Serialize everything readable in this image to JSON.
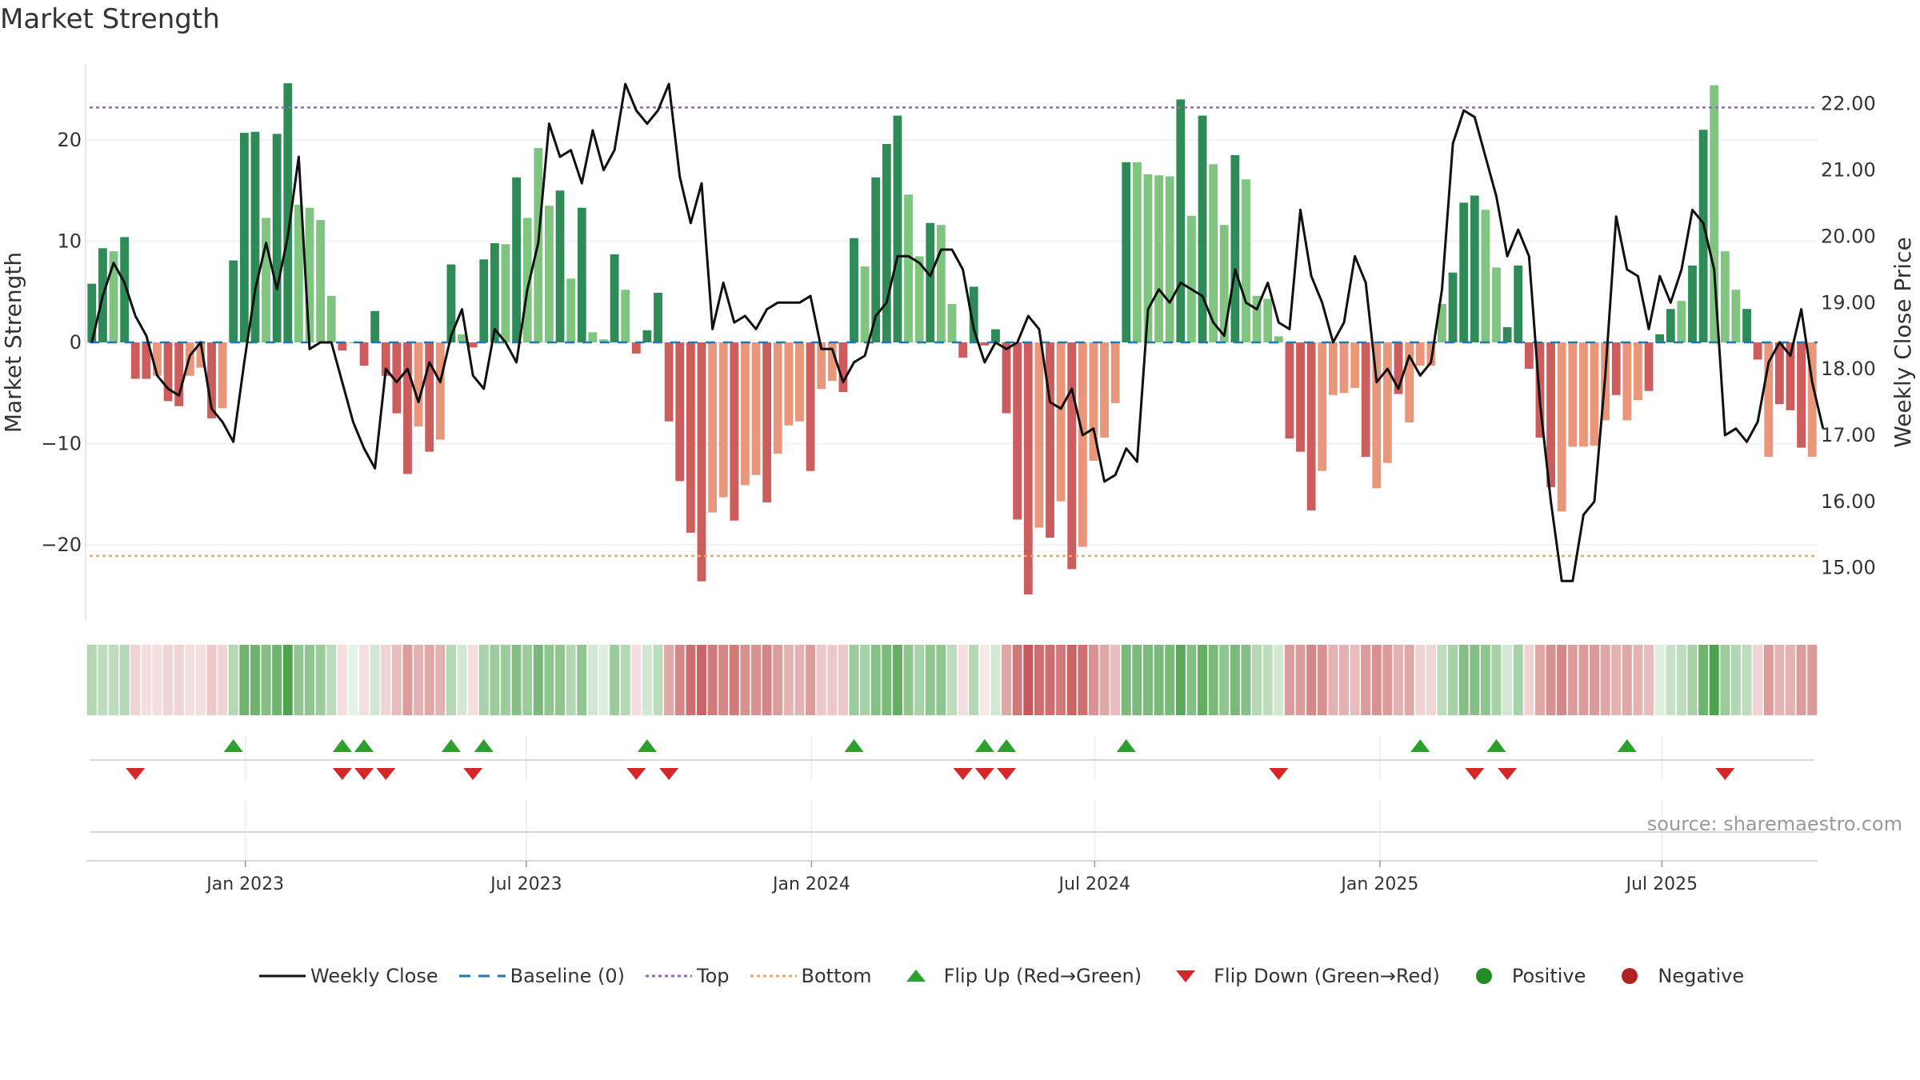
{
  "title": "Market Strength",
  "source": "source: sharemaestro.com",
  "colors": {
    "strong_green": "#2e8b57",
    "light_green": "#7fc47f",
    "strong_red": "#cd5c5c",
    "light_red": "#e9967a",
    "close_line": "#111111",
    "baseline": "#1f77b4",
    "top_line": "#9467bd",
    "bottom_line": "#f4a460",
    "flip_up": "#2ca02c",
    "flip_down": "#d62728",
    "positive": "#228b22",
    "negative": "#b22222"
  },
  "legend": [
    {
      "label": "Weekly Close",
      "icon": "solid-line-icon"
    },
    {
      "label": "Baseline (0)",
      "icon": "dashed-line-icon"
    },
    {
      "label": "Top",
      "icon": "dotted-line-icon"
    },
    {
      "label": "Bottom",
      "icon": "dotted-line-icon"
    },
    {
      "label": "Flip Up (Red→Green)",
      "icon": "triangle-up-icon"
    },
    {
      "label": "Flip Down (Green→Red)",
      "icon": "triangle-down-icon"
    },
    {
      "label": "Positive",
      "icon": "circle-icon"
    },
    {
      "label": "Negative",
      "icon": "circle-icon"
    }
  ],
  "chart_data": {
    "type": "bar",
    "title": "Market Strength",
    "ylabel": "Market Strength",
    "y2label": "Weekly Close Price",
    "ylim": [
      -27.5,
      27.5
    ],
    "y2lim": [
      14.2,
      22.6
    ],
    "yticks": [
      -20,
      -10,
      0,
      10,
      20
    ],
    "ytick_labels": [
      "−20",
      "−10",
      "0",
      "10",
      "20"
    ],
    "y2ticks": [
      15,
      16,
      17,
      18,
      19,
      20,
      21,
      22
    ],
    "y2tick_labels": [
      "15.00",
      "16.00",
      "17.00",
      "18.00",
      "19.00",
      "20.00",
      "21.00",
      "22.00"
    ],
    "xticks": [
      {
        "label": "Jan 2023",
        "week": 14.6
      },
      {
        "label": "Jul 2023",
        "week": 40.4
      },
      {
        "label": "Jan 2024",
        "week": 66.6
      },
      {
        "label": "Jul 2024",
        "week": 92.6
      },
      {
        "label": "Jan 2025",
        "week": 118.8
      },
      {
        "label": "Jul 2025",
        "week": 144.7
      }
    ],
    "top_level": 23.2,
    "bottom_level": -21.1,
    "baseline": 0,
    "series": [
      {
        "name": "Market Strength",
        "values": [
          5.8,
          9.3,
          9.0,
          10.4,
          -3.6,
          -3.6,
          -3.3,
          -5.8,
          -6.3,
          -3.3,
          -2.5,
          -7.5,
          -6.5,
          8.1,
          20.7,
          20.8,
          12.3,
          20.6,
          25.6,
          13.6,
          13.3,
          12.1,
          4.6,
          -0.8,
          0,
          -2.3,
          3.1,
          -3.3,
          -7.0,
          -13.0,
          -8.3,
          -10.8,
          -9.6,
          7.7,
          0.8,
          -0.5,
          8.2,
          9.8,
          9.7,
          16.3,
          12.3,
          19.2,
          13.5,
          15.0,
          6.3,
          13.3,
          1.0,
          0.3,
          8.7,
          5.2,
          -1.1,
          1.2,
          4.9,
          -7.8,
          -13.7,
          -18.8,
          -23.6,
          -16.8,
          -15.3,
          -17.6,
          -14.1,
          -13.1,
          -15.8,
          -11.0,
          -8.2,
          -7.8,
          -12.7,
          -4.6,
          -3.8,
          -4.9,
          10.3,
          7.5,
          16.3,
          19.6,
          22.4,
          14.6,
          8.5,
          11.8,
          11.6,
          3.8,
          -1.5,
          5.5,
          -0.3,
          1.3,
          -7.0,
          -17.5,
          -24.9,
          -18.3,
          -19.3,
          -15.7,
          -22.4,
          -20.2,
          -11.7,
          -9.4,
          -6.0,
          17.8,
          17.8,
          16.6,
          16.5,
          16.4,
          24.0,
          12.5,
          22.4,
          17.6,
          11.6,
          18.5,
          16.1,
          4.6,
          4.3,
          0.6,
          -9.5,
          -10.8,
          -16.6,
          -12.7,
          -5.2,
          -5.0,
          -4.5,
          -11.3,
          -14.4,
          -11.9,
          -5.1,
          -7.9,
          -2.3,
          -2.3,
          3.8,
          6.9,
          13.8,
          14.5,
          13.1,
          7.4,
          1.5,
          7.6,
          -2.6,
          -9.4,
          -14.3,
          -16.7,
          -10.3,
          -10.3,
          -10.2,
          -7.7,
          -5.2,
          -7.7,
          -5.7,
          -4.8,
          0.8,
          3.3,
          4.1,
          7.6,
          21.0,
          25.4,
          9.0,
          5.2,
          3.3,
          -1.7,
          -11.3,
          -6.1,
          -6.7,
          -10.4,
          -11.3
        ],
        "intensity": [
          "strong",
          "strong",
          "light",
          "strong",
          "strong",
          "strong",
          "light",
          "strong",
          "strong",
          "light",
          "light",
          "strong",
          "light",
          "strong",
          "strong",
          "strong",
          "light",
          "strong",
          "strong",
          "light",
          "light",
          "light",
          "light",
          "strong",
          "strong",
          "strong",
          "strong",
          "strong",
          "strong",
          "strong",
          "light",
          "strong",
          "light",
          "strong",
          "light",
          "strong",
          "strong",
          "strong",
          "light",
          "strong",
          "light",
          "light",
          "light",
          "strong",
          "light",
          "strong",
          "light",
          "light",
          "strong",
          "light",
          "strong",
          "strong",
          "strong",
          "strong",
          "strong",
          "strong",
          "strong",
          "light",
          "light",
          "strong",
          "light",
          "light",
          "strong",
          "light",
          "light",
          "light",
          "strong",
          "light",
          "light",
          "strong",
          "strong",
          "light",
          "strong",
          "strong",
          "strong",
          "light",
          "light",
          "strong",
          "light",
          "light",
          "strong",
          "strong",
          "strong",
          "strong",
          "strong",
          "strong",
          "strong",
          "light",
          "strong",
          "light",
          "strong",
          "light",
          "light",
          "light",
          "light",
          "strong",
          "light",
          "light",
          "light",
          "light",
          "strong",
          "light",
          "strong",
          "light",
          "light",
          "strong",
          "light",
          "light",
          "light",
          "light",
          "strong",
          "strong",
          "strong",
          "light",
          "light",
          "light",
          "light",
          "strong",
          "light",
          "light",
          "strong",
          "light",
          "light",
          "light",
          "light",
          "strong",
          "strong",
          "strong",
          "light",
          "light",
          "strong",
          "strong",
          "strong",
          "strong",
          "strong",
          "light",
          "light",
          "light",
          "light",
          "light",
          "strong",
          "light",
          "light",
          "strong",
          "strong",
          "strong",
          "light",
          "strong",
          "strong",
          "light",
          "light",
          "light",
          "strong",
          "strong",
          "light",
          "strong",
          "strong",
          "strong"
        ]
      },
      {
        "name": "Weekly Close",
        "values": [
          18.4,
          19.1,
          19.6,
          19.3,
          18.8,
          18.5,
          17.9,
          17.7,
          17.6,
          18.2,
          18.4,
          17.4,
          17.2,
          16.9,
          18.1,
          19.2,
          19.9,
          19.2,
          20.0,
          21.2,
          18.3,
          18.4,
          18.4,
          17.8,
          17.2,
          16.8,
          16.5,
          18.0,
          17.8,
          18.0,
          17.5,
          18.1,
          17.8,
          18.5,
          18.9,
          17.9,
          17.7,
          18.6,
          18.4,
          18.1,
          19.2,
          19.9,
          21.7,
          21.2,
          21.3,
          20.8,
          21.6,
          21.0,
          21.3,
          22.3,
          21.9,
          21.7,
          21.9,
          22.3,
          20.9,
          20.2,
          20.8,
          18.6,
          19.3,
          18.7,
          18.8,
          18.6,
          18.9,
          19.0,
          19.0,
          19.0,
          19.1,
          18.3,
          18.3,
          17.8,
          18.1,
          18.2,
          18.8,
          19.0,
          19.7,
          19.7,
          19.6,
          19.4,
          19.8,
          19.8,
          19.5,
          18.6,
          18.1,
          18.4,
          18.3,
          18.4,
          18.8,
          18.6,
          17.5,
          17.4,
          17.7,
          17.0,
          17.1,
          16.3,
          16.4,
          16.8,
          16.6,
          18.9,
          19.2,
          19.0,
          19.3,
          19.2,
          19.1,
          18.7,
          18.5,
          19.5,
          19.0,
          18.9,
          19.3,
          18.7,
          18.6,
          20.4,
          19.4,
          19.0,
          18.4,
          18.7,
          19.7,
          19.3,
          17.8,
          18.0,
          17.7,
          18.2,
          17.9,
          18.1,
          19.2,
          21.4,
          21.9,
          21.8,
          21.2,
          20.6,
          19.7,
          20.1,
          19.7,
          17.5,
          16.0,
          14.8,
          14.8,
          15.8,
          16.0,
          17.9,
          20.3,
          19.5,
          19.4,
          18.6,
          19.4,
          19.0,
          19.5,
          20.4,
          20.2,
          19.5,
          17.0,
          17.1,
          16.9,
          17.2,
          18.1,
          18.4,
          18.2,
          18.9,
          17.8,
          17.1
        ],
        "ylim": [
          14.2,
          22.6
        ]
      }
    ],
    "heat_strip": {
      "values": [
        0.35,
        0.3,
        0.3,
        0.35,
        0.2,
        0.15,
        0.15,
        0.2,
        0.2,
        0.15,
        0.15,
        0.25,
        0.2,
        0.35,
        0.65,
        0.65,
        0.55,
        0.65,
        0.8,
        0.5,
        0.5,
        0.45,
        0.3,
        0.15,
        0.1,
        0.15,
        0.2,
        0.2,
        0.3,
        0.45,
        0.35,
        0.4,
        0.35,
        0.35,
        0.2,
        0.15,
        0.4,
        0.45,
        0.45,
        0.55,
        0.45,
        0.6,
        0.5,
        0.5,
        0.35,
        0.5,
        0.2,
        0.15,
        0.45,
        0.35,
        0.15,
        0.2,
        0.3,
        0.4,
        0.55,
        0.65,
        0.7,
        0.6,
        0.55,
        0.6,
        0.5,
        0.5,
        0.55,
        0.45,
        0.35,
        0.35,
        0.45,
        0.25,
        0.25,
        0.25,
        0.45,
        0.4,
        0.55,
        0.6,
        0.7,
        0.5,
        0.4,
        0.5,
        0.5,
        0.3,
        0.15,
        0.35,
        0.1,
        0.2,
        0.4,
        0.6,
        0.75,
        0.65,
        0.65,
        0.6,
        0.7,
        0.65,
        0.5,
        0.4,
        0.3,
        0.6,
        0.6,
        0.6,
        0.6,
        0.6,
        0.75,
        0.55,
        0.7,
        0.6,
        0.5,
        0.6,
        0.55,
        0.35,
        0.3,
        0.2,
        0.45,
        0.45,
        0.55,
        0.5,
        0.35,
        0.35,
        0.3,
        0.45,
        0.5,
        0.45,
        0.35,
        0.4,
        0.2,
        0.2,
        0.3,
        0.4,
        0.55,
        0.55,
        0.5,
        0.4,
        0.2,
        0.4,
        0.2,
        0.4,
        0.5,
        0.55,
        0.45,
        0.45,
        0.45,
        0.4,
        0.35,
        0.4,
        0.35,
        0.3,
        0.15,
        0.25,
        0.3,
        0.4,
        0.65,
        0.8,
        0.45,
        0.35,
        0.3,
        0.2,
        0.45,
        0.35,
        0.35,
        0.45,
        0.45
      ]
    },
    "flip_up_weeks": [
      13,
      23,
      25,
      33,
      36,
      51,
      70,
      82,
      84,
      95,
      122,
      129,
      141
    ],
    "flip_down_weeks": [
      4,
      23,
      25,
      27,
      35,
      50,
      53,
      80,
      82,
      84,
      109,
      127,
      130,
      150
    ]
  }
}
